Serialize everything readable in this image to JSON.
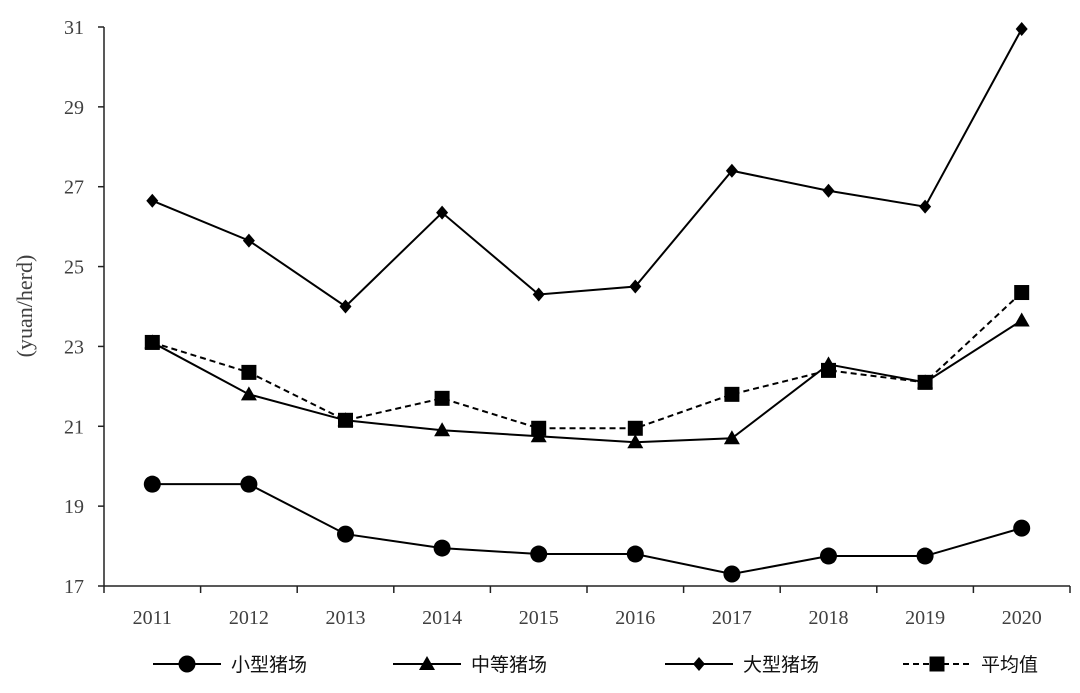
{
  "chart_data": {
    "type": "line",
    "title": "",
    "xlabel": "",
    "ylabel": "(yuan/herd)",
    "categories": [
      "2011",
      "2012",
      "2013",
      "2014",
      "2015",
      "2016",
      "2017",
      "2018",
      "2019",
      "2020"
    ],
    "ylim": [
      17,
      31
    ],
    "yticks": [
      17,
      19,
      21,
      23,
      25,
      27,
      29,
      31
    ],
    "grid": false,
    "legend_position": "bottom",
    "series": [
      {
        "name": "小型猪场",
        "marker": "circle",
        "dash": "solid",
        "color": "#000000",
        "values": [
          19.55,
          19.55,
          18.3,
          17.95,
          17.8,
          17.8,
          17.3,
          17.75,
          17.75,
          18.45
        ]
      },
      {
        "name": "中等猪场",
        "marker": "triangle",
        "dash": "solid",
        "color": "#000000",
        "values": [
          23.1,
          21.8,
          21.15,
          20.9,
          20.75,
          20.6,
          20.7,
          22.55,
          22.1,
          23.65
        ]
      },
      {
        "name": "大型猪场",
        "marker": "diamond",
        "dash": "solid",
        "color": "#000000",
        "values": [
          26.65,
          25.65,
          24.0,
          26.35,
          24.3,
          24.5,
          27.4,
          26.9,
          26.5,
          30.95
        ]
      },
      {
        "name": "平均值",
        "marker": "square",
        "dash": "dashed",
        "color": "#000000",
        "values": [
          23.1,
          22.35,
          21.15,
          21.7,
          20.95,
          20.95,
          21.8,
          22.4,
          22.1,
          24.35
        ]
      }
    ]
  }
}
